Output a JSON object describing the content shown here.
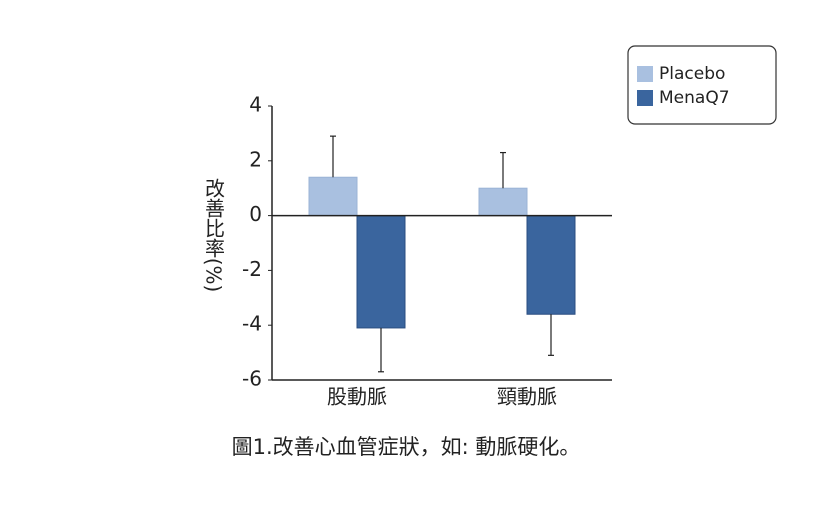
{
  "chart_data": {
    "type": "bar",
    "y_label": "改善比率(%)",
    "caption": "圖1.改善心血管症狀，如: 動脈硬化。",
    "categories": [
      "股動脈",
      "頸動脈"
    ],
    "series": [
      {
        "name": "Placebo",
        "color": "#a9c0e0",
        "values": [
          1.4,
          1.0
        ],
        "errors": [
          1.5,
          1.3
        ]
      },
      {
        "name": "MenaQ7",
        "color": "#3a659e",
        "values": [
          -4.1,
          -3.6
        ],
        "errors": [
          1.6,
          1.5
        ]
      }
    ],
    "ylim": [
      -6,
      4
    ],
    "yticks": [
      -6,
      -4,
      -2,
      0,
      2,
      4
    ],
    "legend": "upper-right"
  }
}
